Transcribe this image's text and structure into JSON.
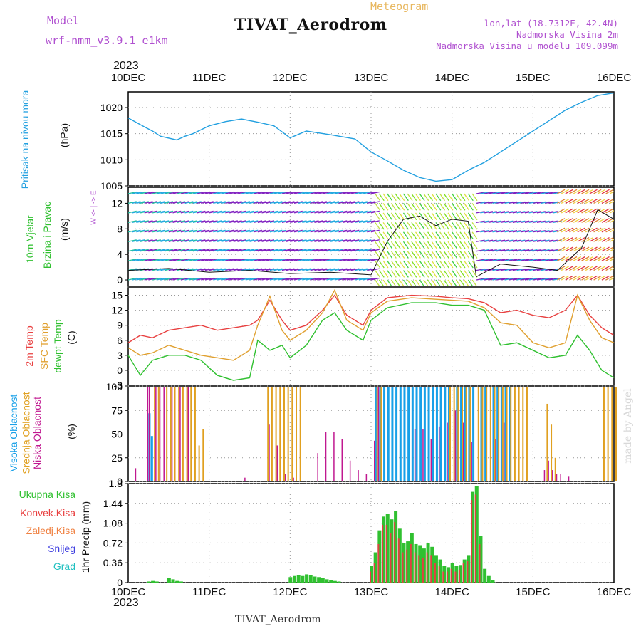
{
  "header": {
    "model_label": "Model",
    "model_value": "wrf-nmm_v3.9.1 e1km",
    "product": "Meteogram",
    "title": "TIVAT_Aerodrom",
    "lonlat": "lon,lat (18.7312E, 42.4N)",
    "alt_station": "Nadmorska Visina 2m",
    "alt_model": "Nadmorska Visina u modelu 109.099m",
    "year_top": "2023",
    "year_bottom": "2023",
    "footer": "TIVAT_Aerodrom",
    "watermark": "made by Angel"
  },
  "axis_x": {
    "ticks": [
      "10DEC",
      "11DEC",
      "12DEC",
      "13DEC",
      "14DEC",
      "15DEC",
      "16DEC"
    ]
  },
  "panel_labels": {
    "pressure": {
      "name": "Pritisak na nivou mora",
      "unit": "(hPa)"
    },
    "wind": {
      "name1": "10m Vjetar",
      "name2": "Brzina i Pravac",
      "unit": "(m/s)",
      "compass": "W <- | -> E"
    },
    "temp": {
      "t2m": "2m Temp",
      "sfc": "SFC Temp",
      "dew": "dewpt Temp",
      "unit": "(C)"
    },
    "cloud": {
      "high": "Visoka Oblacnost",
      "mid": "Srednja Oblacnost",
      "low": "Niska Oblacnost",
      "unit": "(%)"
    },
    "precip": {
      "unit": "1hr Precip (mm)",
      "legend": [
        "Ukupna Kisa",
        "Konvek.Kisa",
        "Zaledj.Kisa",
        "Snijeg",
        "Grad"
      ]
    }
  },
  "colors": {
    "pressure": "#22a0e0",
    "t2m": "#e84040",
    "sfc": "#e0a030",
    "dew": "#30c030",
    "cloud_high": "#18a0e8",
    "cloud_mid": "#e0a020",
    "cloud_low": "#c01890",
    "precip_total": "#30c030",
    "precip_conv": "#e04040",
    "leg_total": "#30c030",
    "leg_conv": "#e84040",
    "leg_frz": "#f08040",
    "leg_snow": "#4040e0",
    "leg_hail": "#20c0c0"
  },
  "chart_data": [
    {
      "type": "line",
      "title": "Pritisak na nivou mora",
      "ylabel": "(hPa)",
      "ylim": [
        1005,
        1023
      ],
      "yticks": [
        1005,
        1010,
        1015,
        1020
      ],
      "x": [
        0,
        0.2,
        0.3,
        0.4,
        0.6,
        0.7,
        0.8,
        1.0,
        1.2,
        1.4,
        1.6,
        1.8,
        2.0,
        2.2,
        2.5,
        2.8,
        3.0,
        3.2,
        3.4,
        3.6,
        3.8,
        4.0,
        4.2,
        4.4,
        4.6,
        4.8,
        5.0,
        5.2,
        5.4,
        5.6,
        5.8,
        6.0
      ],
      "series": [
        {
          "values": [
            1018,
            1016.3,
            1015.5,
            1014.5,
            1013.8,
            1014.5,
            1015,
            1016.5,
            1017.3,
            1017.8,
            1017.2,
            1016.5,
            1014.2,
            1015.5,
            1014.8,
            1014,
            1011.5,
            1009.8,
            1008,
            1006.6,
            1005.9,
            1006.2,
            1008,
            1009.5,
            1011.5,
            1013.5,
            1015.5,
            1017.5,
            1019.5,
            1021,
            1022.3,
            1022.8
          ]
        }
      ]
    },
    {
      "type": "line",
      "title": "10m Vjetar Brzina i Pravac",
      "ylabel": "(m/s)",
      "ylim": [
        -1,
        14.5
      ],
      "yticks": [
        0,
        4,
        8,
        12
      ],
      "x": [
        0,
        0.5,
        1.0,
        1.5,
        2.0,
        2.5,
        3.0,
        3.2,
        3.4,
        3.6,
        3.8,
        4.0,
        4.2,
        4.3,
        4.6,
        5.0,
        5.3,
        5.6,
        5.8,
        6.0
      ],
      "series": [
        {
          "values": [
            1.5,
            1.8,
            1.2,
            1.5,
            1.0,
            1.2,
            0.8,
            6,
            9.5,
            10,
            8.5,
            9.5,
            9.2,
            0.5,
            2.5,
            2.0,
            1.5,
            5,
            11,
            9.5
          ]
        }
      ]
    },
    {
      "type": "line",
      "title": "",
      "ylabel": "(C)",
      "ylim": [
        -3,
        16.5
      ],
      "yticks": [
        -3,
        0,
        3,
        6,
        9,
        12,
        15
      ],
      "x": [
        0,
        0.15,
        0.3,
        0.5,
        0.7,
        0.9,
        1.1,
        1.3,
        1.5,
        1.6,
        1.75,
        1.9,
        2.0,
        2.2,
        2.4,
        2.55,
        2.7,
        2.9,
        3.0,
        3.2,
        3.5,
        3.8,
        4.0,
        4.2,
        4.4,
        4.6,
        4.8,
        5.0,
        5.2,
        5.4,
        5.55,
        5.7,
        5.85,
        6.0
      ],
      "series": [
        {
          "name": "2m Temp",
          "values": [
            5.5,
            7,
            6.5,
            8,
            8.5,
            9,
            8,
            8.5,
            9,
            10,
            14,
            10,
            8,
            9,
            12,
            15,
            11,
            9,
            12,
            14.5,
            15,
            14.8,
            14.5,
            14.3,
            13.5,
            11.5,
            12,
            11,
            10.5,
            12,
            15,
            11,
            8.5,
            7
          ]
        },
        {
          "name": "SFC Temp",
          "values": [
            4.5,
            3,
            3.5,
            5,
            4,
            3,
            2.5,
            2,
            4,
            9,
            14.8,
            8,
            6,
            8,
            11.5,
            16,
            10,
            8,
            11.5,
            13.8,
            14.5,
            14.2,
            14,
            13.8,
            12.5,
            9.5,
            9,
            5.5,
            4.5,
            5.5,
            15,
            10,
            6.5,
            5.5
          ]
        },
        {
          "name": "dewpt Temp",
          "values": [
            3,
            -1,
            2,
            3,
            3,
            2,
            -1,
            -2,
            -1.5,
            6,
            4,
            5,
            2.5,
            5,
            10,
            11.5,
            8,
            6,
            10,
            12.5,
            13.5,
            13.5,
            13,
            13,
            12,
            5,
            5.5,
            4,
            2.5,
            3,
            7,
            4,
            0,
            -1.5
          ]
        }
      ]
    },
    {
      "type": "bar",
      "title": "",
      "ylabel": "(%)",
      "ylim": [
        0,
        100
      ],
      "yticks": [
        0,
        25,
        50,
        75,
        100
      ],
      "series": [
        {
          "name": "Visoka Oblacnost",
          "x": [
            0.25,
            0.28,
            3.05,
            3.1,
            3.15,
            3.2,
            3.25,
            3.3,
            3.35,
            3.4,
            3.45,
            3.5,
            3.55,
            3.6,
            3.65,
            3.7,
            3.75,
            3.8,
            3.85,
            3.9,
            3.95,
            4.05,
            4.1,
            4.15,
            4.2,
            4.25,
            4.35,
            4.4,
            4.5,
            4.55,
            4.6,
            4.65,
            4.7
          ],
          "values": [
            72,
            48,
            100,
            100,
            100,
            100,
            100,
            100,
            100,
            100,
            100,
            100,
            100,
            100,
            100,
            100,
            100,
            100,
            100,
            100,
            100,
            100,
            100,
            100,
            100,
            100,
            100,
            100,
            100,
            100,
            100,
            100,
            100
          ]
        },
        {
          "name": "Srednja Oblacnost",
          "x": [
            0.3,
            0.35,
            0.45,
            0.5,
            0.55,
            0.6,
            0.65,
            0.7,
            0.75,
            0.8,
            0.85,
            0.9,
            1.7,
            1.75,
            1.8,
            1.85,
            1.9,
            1.95,
            2.0,
            2.05,
            2.1,
            3.05,
            3.1,
            3.95,
            4.0,
            4.05,
            4.1,
            4.15,
            4.2,
            4.3,
            4.35,
            4.4,
            4.45,
            4.5,
            4.55,
            4.6,
            4.65,
            4.7,
            4.75,
            4.8,
            4.85,
            4.9,
            5.15,
            5.2,
            5.25,
            5.85,
            5.9,
            5.95,
            6.0
          ],
          "values": [
            100,
            100,
            100,
            100,
            100,
            100,
            100,
            100,
            100,
            100,
            38,
            55,
            100,
            100,
            100,
            100,
            100,
            100,
            100,
            100,
            100,
            100,
            100,
            100,
            100,
            100,
            100,
            100,
            100,
            100,
            100,
            100,
            100,
            100,
            100,
            100,
            100,
            100,
            100,
            100,
            100,
            100,
            82,
            60,
            25,
            100,
            100,
            100,
            100
          ]
        },
        {
          "name": "Niska Oblacnost",
          "x": [
            0.05,
            0.2,
            0.22,
            0.3,
            0.35,
            0.4,
            0.5,
            0.6,
            0.7,
            1.4,
            1.7,
            1.8,
            1.9,
            2.0,
            2.3,
            2.4,
            2.5,
            2.6,
            2.7,
            2.8,
            2.9,
            3.0,
            3.05,
            3.5,
            3.6,
            3.7,
            3.8,
            3.9,
            4.0,
            4.1,
            4.2,
            4.5,
            4.6,
            5.1,
            5.15,
            5.2,
            5.25,
            5.3,
            5.4
          ],
          "values": [
            14,
            100,
            100,
            100,
            100,
            100,
            100,
            100,
            100,
            4,
            60,
            38,
            8,
            4,
            30,
            52,
            52,
            45,
            22,
            12,
            8,
            43,
            100,
            55,
            55,
            45,
            58,
            62,
            75,
            62,
            42,
            45,
            62,
            12,
            22,
            12,
            8,
            8,
            5
          ]
        }
      ]
    },
    {
      "type": "bar",
      "title": "",
      "ylabel": "1hr Precip (mm)",
      "ylim": [
        0,
        1.8
      ],
      "yticks": [
        0,
        0.36,
        0.72,
        1.08,
        1.44,
        1.8
      ],
      "series": [
        {
          "name": "Ukupna Kisa",
          "x": [
            0.25,
            0.3,
            0.35,
            0.5,
            0.55,
            0.6,
            0.65,
            2.0,
            2.05,
            2.1,
            2.15,
            2.2,
            2.25,
            2.3,
            2.35,
            2.4,
            2.45,
            2.5,
            2.55,
            2.6,
            3.0,
            3.05,
            3.1,
            3.15,
            3.2,
            3.25,
            3.3,
            3.35,
            3.4,
            3.45,
            3.5,
            3.55,
            3.6,
            3.65,
            3.7,
            3.75,
            3.8,
            3.85,
            3.9,
            3.95,
            4.0,
            4.05,
            4.1,
            4.15,
            4.2,
            4.25,
            4.3,
            4.35,
            4.4,
            4.45,
            4.5
          ],
          "values": [
            0.02,
            0.03,
            0.02,
            0.08,
            0.06,
            0.03,
            0.02,
            0.1,
            0.12,
            0.14,
            0.12,
            0.15,
            0.13,
            0.11,
            0.1,
            0.08,
            0.06,
            0.05,
            0.03,
            0.02,
            0.3,
            0.55,
            0.95,
            1.2,
            1.25,
            1.15,
            1.3,
            0.98,
            0.72,
            0.75,
            0.9,
            0.7,
            0.68,
            0.62,
            0.72,
            0.65,
            0.5,
            0.42,
            0.3,
            0.28,
            0.35,
            0.3,
            0.32,
            0.42,
            0.5,
            1.65,
            1.75,
            0.85,
            0.25,
            0.12,
            0.04
          ]
        },
        {
          "name": "Konvek.Kisa",
          "x": [
            3.0,
            3.05,
            3.1,
            3.15,
            3.2,
            3.25,
            3.3,
            3.35,
            3.4,
            3.45,
            3.5,
            3.55,
            3.6,
            3.65,
            3.7,
            3.75,
            3.8,
            3.85,
            3.9,
            3.95,
            4.0,
            4.05,
            4.1,
            4.15,
            4.2,
            4.25,
            4.3,
            4.35
          ],
          "values": [
            0.2,
            0.35,
            0.7,
            1.05,
            1.05,
            0.9,
            1.1,
            0.8,
            0.55,
            0.6,
            0.7,
            0.55,
            0.5,
            0.45,
            0.55,
            0.5,
            0.35,
            0.3,
            0.2,
            0.2,
            0.25,
            0.2,
            0.22,
            0.35,
            0.4,
            1.5,
            1.6,
            0.7
          ]
        }
      ]
    }
  ]
}
